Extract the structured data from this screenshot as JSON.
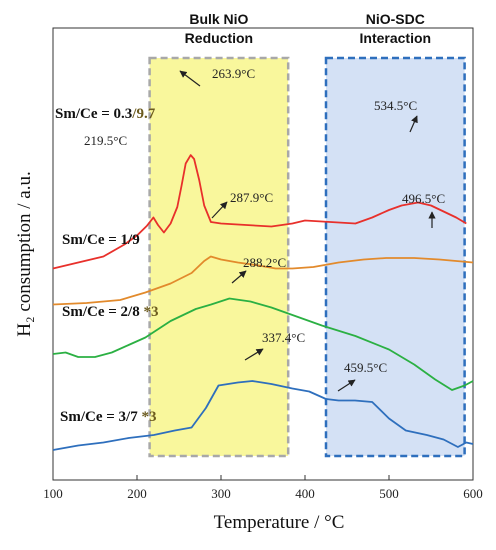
{
  "chart_data": {
    "type": "line",
    "title": "",
    "xlabel": "Temperature / °C",
    "ylabel": "H₂ consumption / a.u.",
    "xlim": [
      100,
      600
    ],
    "xticks": [
      "100",
      "200",
      "300",
      "400",
      "500",
      "600"
    ],
    "y_ticks_shown": false,
    "regions": [
      {
        "label": "Bulk NiO Reduction",
        "x": [
          215,
          380
        ],
        "fill": "#f9f79c",
        "border": "#a8a8a8",
        "style": "dashed"
      },
      {
        "label": "NiO-SDC Interaction",
        "x": [
          425,
          590
        ],
        "fill": "#d4e1f5",
        "border": "#2e6fbd",
        "style": "dashed"
      }
    ],
    "series": [
      {
        "name": "Sm/Ce = 0.3/9.7",
        "label_main": "Sm/Ce = 0.3",
        "label_suffix": "/9.7",
        "color": "#e8302b",
        "points": [
          [
            100,
            0.895
          ],
          [
            130,
            0.875
          ],
          [
            160,
            0.855
          ],
          [
            185,
            0.815
          ],
          [
            200,
            0.785
          ],
          [
            212,
            0.752
          ],
          [
            219.5,
            0.725
          ],
          [
            225,
            0.75
          ],
          [
            232,
            0.775
          ],
          [
            240,
            0.745
          ],
          [
            248,
            0.69
          ],
          [
            253,
            0.62
          ],
          [
            258,
            0.545
          ],
          [
            263.9,
            0.517
          ],
          [
            268,
            0.53
          ],
          [
            274,
            0.6
          ],
          [
            280,
            0.685
          ],
          [
            288,
            0.74
          ],
          [
            300,
            0.745
          ],
          [
            330,
            0.75
          ],
          [
            360,
            0.755
          ],
          [
            385,
            0.745
          ],
          [
            400,
            0.735
          ],
          [
            430,
            0.74
          ],
          [
            460,
            0.745
          ],
          [
            480,
            0.725
          ],
          [
            500,
            0.7
          ],
          [
            515,
            0.685
          ],
          [
            534.5,
            0.675
          ],
          [
            550,
            0.685
          ],
          [
            565,
            0.705
          ],
          [
            580,
            0.725
          ],
          [
            592,
            0.745
          ]
        ]
      },
      {
        "name": "Sm/Ce = 1/9",
        "label_main": "Sm/Ce = 1/9",
        "label_suffix": "",
        "color": "#e28a2c",
        "points": [
          [
            100,
            1.015
          ],
          [
            140,
            1.01
          ],
          [
            180,
            1.0
          ],
          [
            210,
            0.975
          ],
          [
            240,
            0.945
          ],
          [
            265,
            0.91
          ],
          [
            280,
            0.87
          ],
          [
            287.9,
            0.855
          ],
          [
            300,
            0.865
          ],
          [
            320,
            0.875
          ],
          [
            345,
            0.885
          ],
          [
            365,
            0.895
          ],
          [
            385,
            0.895
          ],
          [
            410,
            0.89
          ],
          [
            440,
            0.875
          ],
          [
            470,
            0.865
          ],
          [
            496.5,
            0.86
          ],
          [
            530,
            0.86
          ],
          [
            560,
            0.865
          ],
          [
            600,
            0.875
          ]
        ]
      },
      {
        "name": "Sm/Ce = 2/8 *3",
        "label_main": "Sm/Ce = 2/8",
        "label_suffix": " *3",
        "color": "#2bb043",
        "points": [
          [
            100,
            1.18
          ],
          [
            115,
            1.175
          ],
          [
            130,
            1.19
          ],
          [
            150,
            1.19
          ],
          [
            170,
            1.175
          ],
          [
            190,
            1.15
          ],
          [
            210,
            1.125
          ],
          [
            240,
            1.07
          ],
          [
            270,
            1.03
          ],
          [
            288.2,
            1.015
          ],
          [
            310,
            0.995
          ],
          [
            335,
            1.005
          ],
          [
            360,
            1.025
          ],
          [
            390,
            1.055
          ],
          [
            420,
            1.085
          ],
          [
            460,
            1.12
          ],
          [
            500,
            1.165
          ],
          [
            530,
            1.215
          ],
          [
            555,
            1.265
          ],
          [
            575,
            1.3
          ],
          [
            590,
            1.285
          ],
          [
            600,
            1.27
          ]
        ]
      },
      {
        "name": "Sm/Ce = 3/7 *3",
        "label_main": "Sm/Ce = 3/7",
        "label_suffix": " *3",
        "color": "#2e6fbd",
        "points": [
          [
            100,
            1.5
          ],
          [
            130,
            1.485
          ],
          [
            160,
            1.475
          ],
          [
            190,
            1.46
          ],
          [
            220,
            1.45
          ],
          [
            245,
            1.435
          ],
          [
            265,
            1.425
          ],
          [
            282,
            1.36
          ],
          [
            297,
            1.285
          ],
          [
            320,
            1.275
          ],
          [
            337.4,
            1.27
          ],
          [
            360,
            1.28
          ],
          [
            385,
            1.295
          ],
          [
            405,
            1.305
          ],
          [
            425,
            1.33
          ],
          [
            440,
            1.335
          ],
          [
            459.5,
            1.335
          ],
          [
            480,
            1.34
          ],
          [
            500,
            1.395
          ],
          [
            520,
            1.435
          ],
          [
            545,
            1.45
          ],
          [
            565,
            1.465
          ],
          [
            582,
            1.49
          ],
          [
            592,
            1.475
          ],
          [
            600,
            1.48
          ]
        ]
      }
    ],
    "annotations": [
      {
        "text": "263.9°C",
        "series": 0,
        "x": 263.9,
        "arrow": true
      },
      {
        "text": "219.5°C",
        "series": 0,
        "x": 219.5,
        "arrow": false
      },
      {
        "text": "534.5°C",
        "series": 0,
        "x": 534.5,
        "arrow": true
      },
      {
        "text": "287.9°C",
        "series": 1,
        "x": 287.9,
        "arrow": true
      },
      {
        "text": "496.5°C",
        "series": 1,
        "x": 496.5,
        "arrow": true
      },
      {
        "text": "288.2°C",
        "series": 2,
        "x": 288.2,
        "arrow": true
      },
      {
        "text": "337.4°C",
        "series": 3,
        "x": 337.4,
        "arrow": true
      },
      {
        "text": "459.5°C",
        "series": 3,
        "x": 459.5,
        "arrow": true
      }
    ]
  }
}
